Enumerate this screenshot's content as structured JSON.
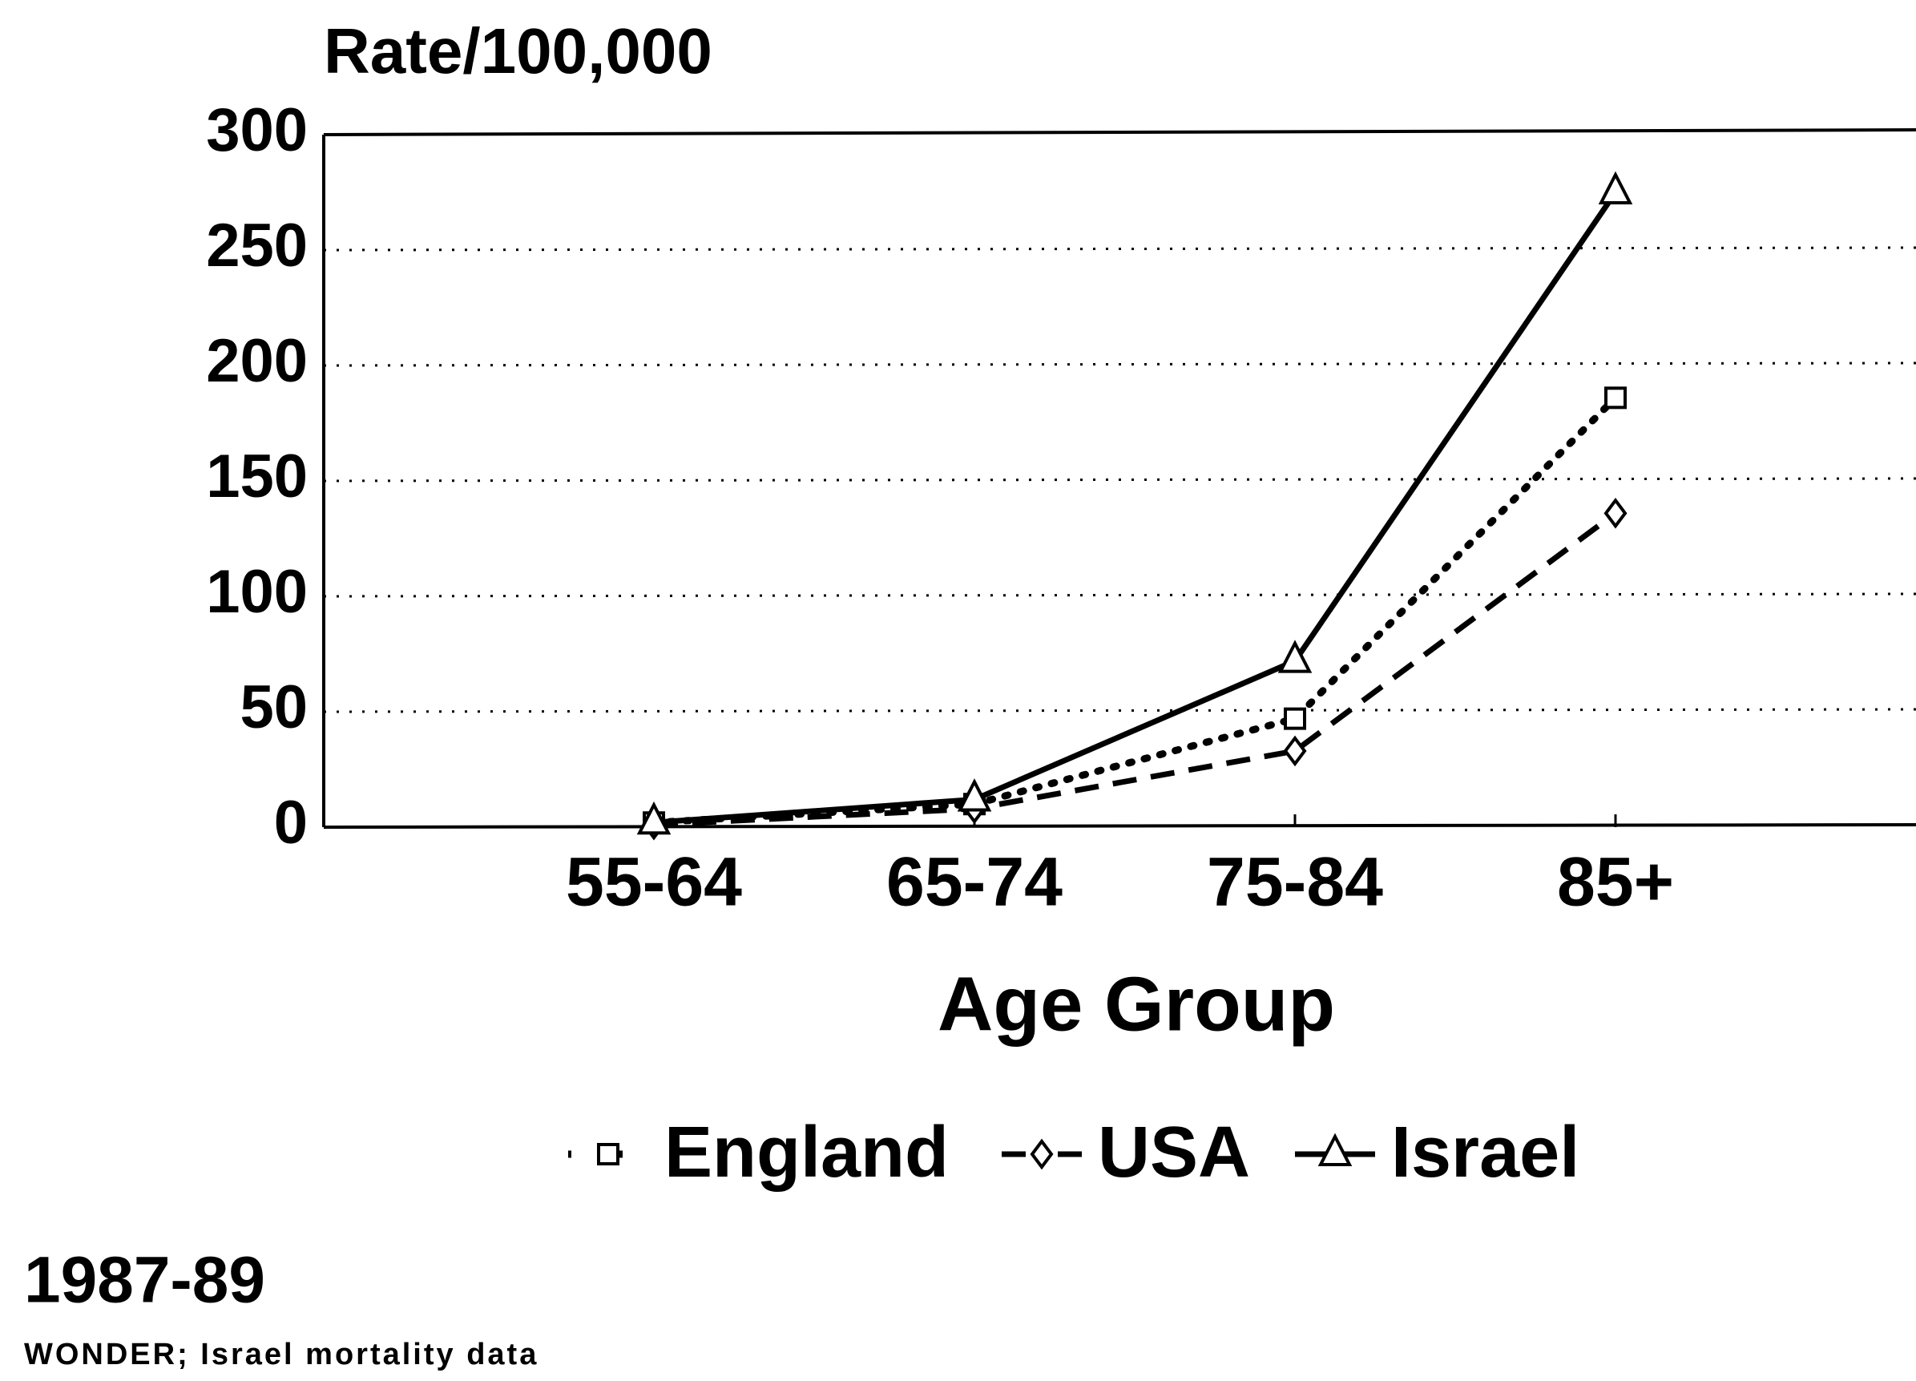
{
  "chart_data": {
    "type": "line",
    "y_label": "Rate/100,000",
    "x_label": "Age Group",
    "categories": [
      "55-64",
      "65-74",
      "75-84",
      "85+"
    ],
    "series": [
      {
        "name": "England",
        "color": "#000000",
        "line_style": "dotted",
        "marker": "square",
        "values": [
          2,
          10,
          47,
          186
        ]
      },
      {
        "name": "USA",
        "color": "#000000",
        "line_style": "dashed",
        "marker": "diamond",
        "values": [
          1,
          8,
          33,
          136
        ]
      },
      {
        "name": "Israel",
        "color": "#000000",
        "line_style": "solid",
        "marker": "triangle",
        "values": [
          2,
          12,
          72,
          275
        ]
      }
    ],
    "ylim": [
      0,
      300
    ],
    "yticks": [
      0,
      50,
      100,
      150,
      200,
      250,
      300
    ],
    "grid": true,
    "period": "1987-89",
    "source": "WONDER; Israel mortality data"
  }
}
